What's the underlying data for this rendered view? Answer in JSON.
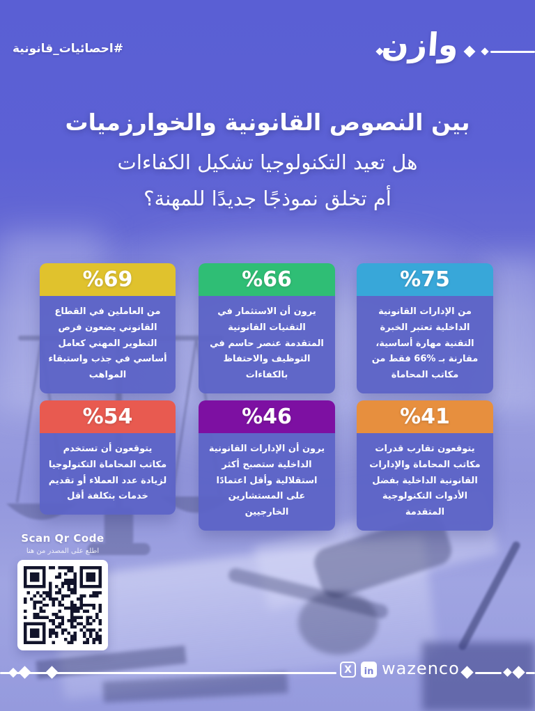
{
  "header": {
    "hashtag": "#احصائيات_قانونية",
    "logo": "وازن"
  },
  "title": {
    "line1": "بين النصوص القانونية والخوارزميات",
    "line2": "هل تعيد التكنولوجيا تشكيل الكفاءات",
    "line3": "أم تخلق نموذجًا جديدًا للمهنة؟"
  },
  "stats": [
    {
      "value": "%69",
      "color": "#e0c22d",
      "text": "من العاملين في القطاع القانوني يضعون فرص التطوير المهني كعامل أساسي في جذب واستبقاء المواهب"
    },
    {
      "value": "%66",
      "color": "#2fbe75",
      "text": "يرون أن الاستثمار في التقنيات القانونية المتقدمة عنصر حاسم في التوظيف والاحتفاظ بالكفاءات"
    },
    {
      "value": "%75",
      "color": "#38a7d9",
      "text": "من الإدارات القانونية الداخلية تعتبر الخبرة التقنية مهارة أساسية، مقارنة بـ %66 فقط من مكاتب المحاماة"
    },
    {
      "value": "%54",
      "color": "#e85a50",
      "text": "يتوقعون أن تستخدم مكاتب المحاماة التكنولوجيا لزيادة عدد العملاء أو تقديم خدمات بتكلفة أقل"
    },
    {
      "value": "%46",
      "color": "#7d10a2",
      "text": "يرون أن الإدارات القانونية الداخلية ستصبح أكثر استقلالية وأقل اعتمادًا على المستشارين الخارجيين"
    },
    {
      "value": "%41",
      "color": "#e78f3e",
      "text": "يتوقعون تقارب قدرات مكاتب المحاماة والإدارات القانونية الداخلية بفضل الأدوات التكنولوجية المتقدمة"
    }
  ],
  "qr": {
    "title": "Scan Qr Code",
    "subtitle": "اطلع على المصدر من هنا"
  },
  "footer": {
    "handle": "wazenco",
    "x_glyph": "X",
    "linkedin_glyph": "in"
  },
  "colors": {
    "background_top": "#5a5fd4",
    "card_body": "#5c63c6",
    "text": "#ffffff"
  }
}
